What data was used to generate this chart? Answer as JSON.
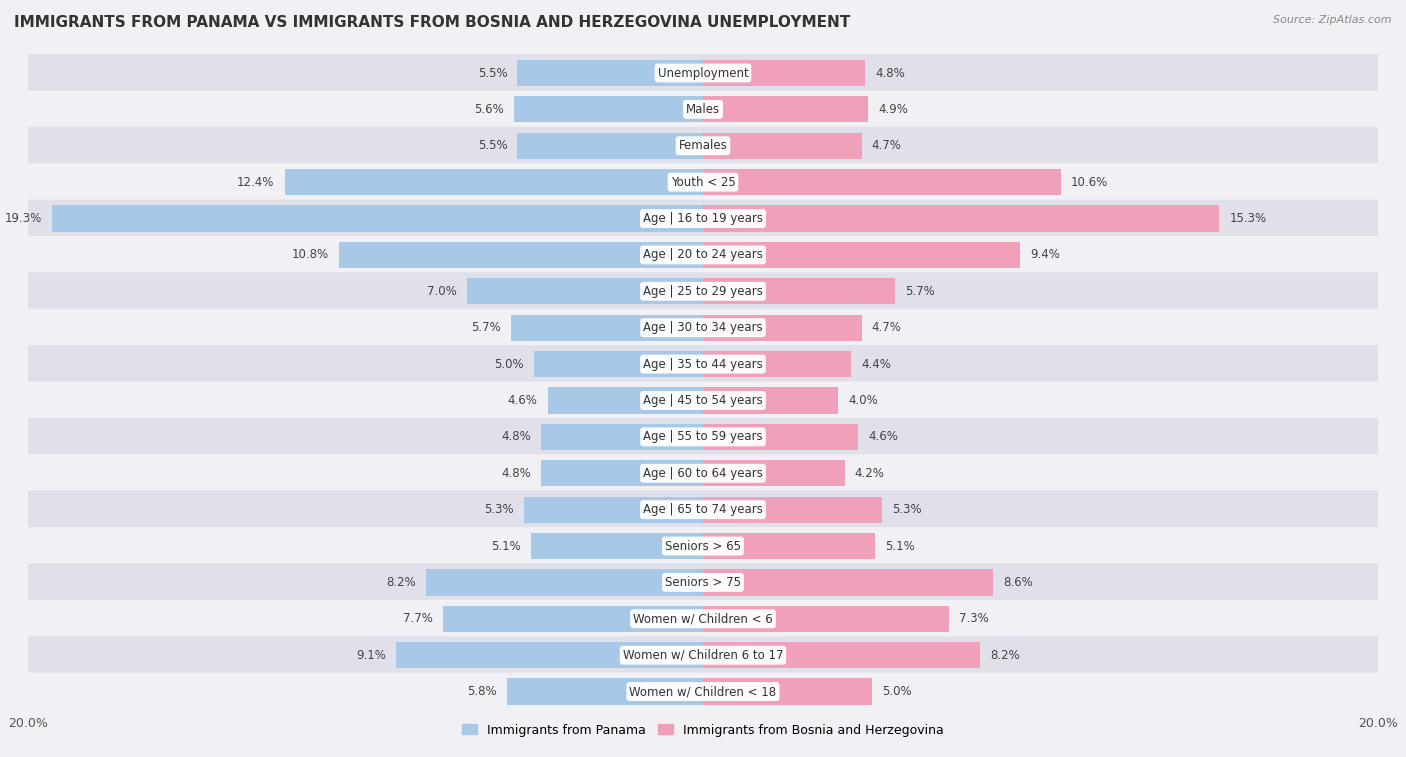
{
  "title": "IMMIGRANTS FROM PANAMA VS IMMIGRANTS FROM BOSNIA AND HERZEGOVINA UNEMPLOYMENT",
  "source": "Source: ZipAtlas.com",
  "categories": [
    "Unemployment",
    "Males",
    "Females",
    "Youth < 25",
    "Age | 16 to 19 years",
    "Age | 20 to 24 years",
    "Age | 25 to 29 years",
    "Age | 30 to 34 years",
    "Age | 35 to 44 years",
    "Age | 45 to 54 years",
    "Age | 55 to 59 years",
    "Age | 60 to 64 years",
    "Age | 65 to 74 years",
    "Seniors > 65",
    "Seniors > 75",
    "Women w/ Children < 6",
    "Women w/ Children 6 to 17",
    "Women w/ Children < 18"
  ],
  "panama_values": [
    5.5,
    5.6,
    5.5,
    12.4,
    19.3,
    10.8,
    7.0,
    5.7,
    5.0,
    4.6,
    4.8,
    4.8,
    5.3,
    5.1,
    8.2,
    7.7,
    9.1,
    5.8
  ],
  "bosnia_values": [
    4.8,
    4.9,
    4.7,
    10.6,
    15.3,
    9.4,
    5.7,
    4.7,
    4.4,
    4.0,
    4.6,
    4.2,
    5.3,
    5.1,
    8.6,
    7.3,
    8.2,
    5.0
  ],
  "panama_color": "#a8c8e8",
  "bosnia_color": "#f0a0b8",
  "panama_label": "Immigrants from Panama",
  "bosnia_label": "Immigrants from Bosnia and Herzegovina",
  "xlim": 20.0,
  "row_colors_odd": "#f0f0f5",
  "row_colors_even": "#e0e0ea",
  "title_fontsize": 11,
  "label_fontsize": 8.5,
  "value_fontsize": 8.5
}
